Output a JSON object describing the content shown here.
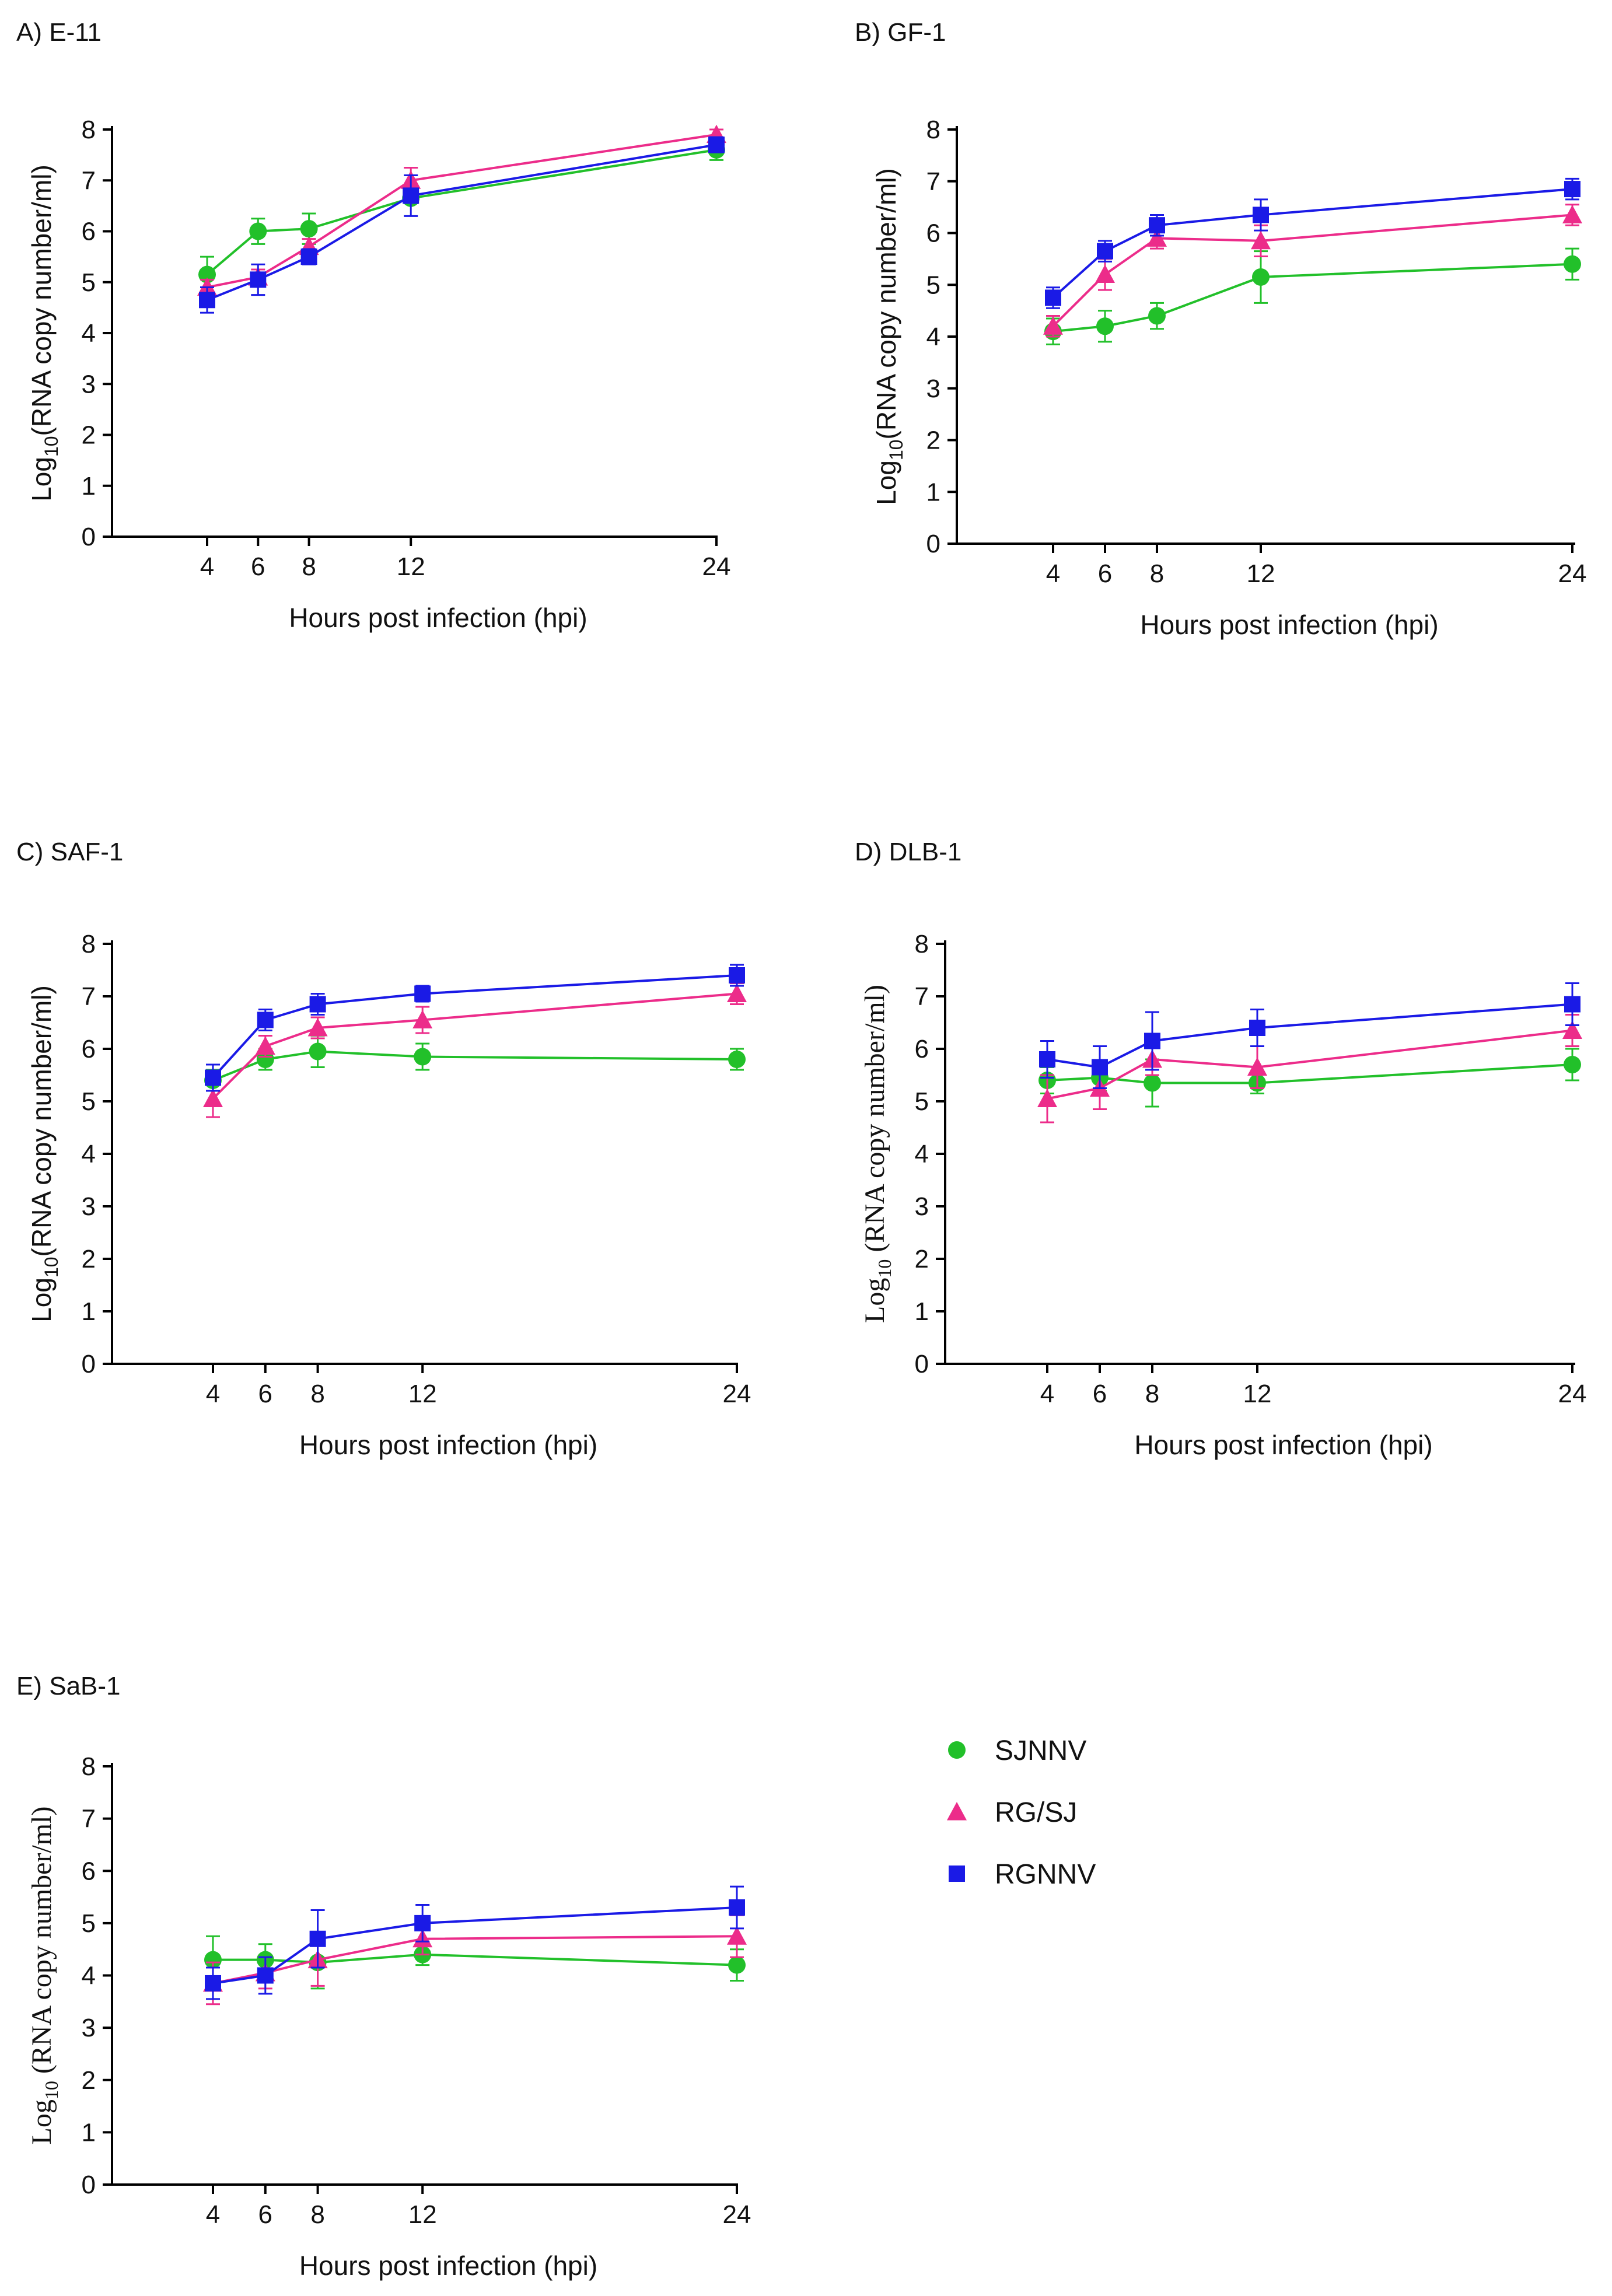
{
  "colors": {
    "SJNNV": "#22c02a",
    "RG/SJ": "#ec2c8a",
    "RGNNV": "#1a1ae6",
    "axis": "#000000"
  },
  "legend": [
    {
      "name": "SJNNV",
      "marker": "circle"
    },
    {
      "name": "RG/SJ",
      "marker": "triangle"
    },
    {
      "name": "RGNNV",
      "marker": "square"
    }
  ],
  "chart_data": [
    {
      "type": "line",
      "title": "A) E-11",
      "xlabel": "Hours post infection (hpi)",
      "ylabel_prefix": "Log",
      "ylabel_sub": "10",
      "ylabel_rest": "(RNA copy number/ml)",
      "x": [
        4,
        6,
        8,
        12,
        24
      ],
      "xticks": [
        "4",
        "6",
        "8",
        "12",
        "24"
      ],
      "yticks": [
        "0",
        "1",
        "2",
        "3",
        "4",
        "5",
        "6",
        "7",
        "8"
      ],
      "ylim": [
        0,
        8
      ],
      "series": [
        {
          "name": "SJNNV",
          "values": [
            5.15,
            6.0,
            6.05,
            6.65,
            7.6
          ],
          "errors": [
            0.35,
            0.25,
            0.3,
            0.1,
            0.2
          ]
        },
        {
          "name": "RG/SJ",
          "values": [
            4.9,
            5.1,
            5.7,
            7.0,
            7.9
          ],
          "errors": [
            0.15,
            0.15,
            0.15,
            0.25,
            0.1
          ]
        },
        {
          "name": "RGNNV",
          "values": [
            4.65,
            5.05,
            5.5,
            6.7,
            7.7
          ],
          "errors": [
            0.25,
            0.3,
            0.15,
            0.4,
            0.15
          ]
        }
      ]
    },
    {
      "type": "line",
      "title": "B) GF-1",
      "xlabel": "Hours post infection (hpi)",
      "ylabel_prefix": "Log",
      "ylabel_sub": "10",
      "ylabel_rest": "(RNA copy number/ml)",
      "x": [
        4,
        6,
        8,
        12,
        24
      ],
      "xticks": [
        "4",
        "6",
        "8",
        "12",
        "24"
      ],
      "yticks": [
        "0",
        "1",
        "2",
        "3",
        "4",
        "5",
        "6",
        "7",
        "8"
      ],
      "ylim": [
        0,
        8
      ],
      "series": [
        {
          "name": "SJNNV",
          "values": [
            4.1,
            4.2,
            4.4,
            5.15,
            5.4
          ],
          "errors": [
            0.25,
            0.3,
            0.25,
            0.5,
            0.3
          ]
        },
        {
          "name": "RG/SJ",
          "values": [
            4.2,
            5.2,
            5.9,
            5.85,
            6.35
          ],
          "errors": [
            0.2,
            0.3,
            0.2,
            0.3,
            0.2
          ]
        },
        {
          "name": "RGNNV",
          "values": [
            4.75,
            5.65,
            6.15,
            6.35,
            6.85
          ],
          "errors": [
            0.2,
            0.2,
            0.2,
            0.3,
            0.2
          ]
        }
      ]
    },
    {
      "type": "line",
      "title": "C) SAF-1",
      "xlabel": "Hours post infection (hpi)",
      "ylabel_prefix": "Log",
      "ylabel_sub": "10",
      "ylabel_rest": "(RNA copy number/ml)",
      "x": [
        4,
        6,
        8,
        12,
        24
      ],
      "xticks": [
        "4",
        "6",
        "8",
        "12",
        "24"
      ],
      "yticks": [
        "0",
        "1",
        "2",
        "3",
        "4",
        "5",
        "6",
        "7",
        "8"
      ],
      "ylim": [
        0,
        8
      ],
      "series": [
        {
          "name": "SJNNV",
          "values": [
            5.4,
            5.8,
            5.95,
            5.85,
            5.8
          ],
          "errors": [
            0.2,
            0.2,
            0.3,
            0.25,
            0.2
          ]
        },
        {
          "name": "RG/SJ",
          "values": [
            5.05,
            6.05,
            6.4,
            6.55,
            7.05
          ],
          "errors": [
            0.35,
            0.2,
            0.2,
            0.25,
            0.2
          ]
        },
        {
          "name": "RGNNV",
          "values": [
            5.45,
            6.55,
            6.85,
            7.05,
            7.4
          ],
          "errors": [
            0.25,
            0.2,
            0.2,
            0.15,
            0.2
          ]
        }
      ]
    },
    {
      "type": "line",
      "title": "D) DLB-1",
      "xlabel": "Hours post infection (hpi)",
      "ylabel_prefix": "Log",
      "ylabel_sub": "10",
      "ylabel_rest": " (RNA copy number/ml)",
      "ylabel_style": "serif",
      "x": [
        4,
        6,
        8,
        12,
        24
      ],
      "xticks": [
        "4",
        "6",
        "8",
        "12",
        "24"
      ],
      "yticks": [
        "0",
        "1",
        "2",
        "3",
        "4",
        "5",
        "6",
        "7",
        "8"
      ],
      "ylim": [
        0,
        8
      ],
      "series": [
        {
          "name": "SJNNV",
          "values": [
            5.4,
            5.45,
            5.35,
            5.35,
            5.7
          ],
          "errors": [
            0.25,
            0.25,
            0.45,
            0.2,
            0.3
          ]
        },
        {
          "name": "RG/SJ",
          "values": [
            5.05,
            5.25,
            5.8,
            5.65,
            6.35
          ],
          "errors": [
            0.45,
            0.4,
            0.3,
            0.4,
            0.3
          ]
        },
        {
          "name": "RGNNV",
          "values": [
            5.8,
            5.65,
            6.15,
            6.4,
            6.85
          ],
          "errors": [
            0.35,
            0.4,
            0.55,
            0.35,
            0.4
          ]
        }
      ]
    },
    {
      "type": "line",
      "title": "E) SaB-1",
      "xlabel": "Hours post infection (hpi)",
      "ylabel_prefix": "Log",
      "ylabel_sub": "10",
      "ylabel_rest": " (RNA copy number/ml)",
      "ylabel_style": "serif",
      "x": [
        4,
        6,
        8,
        12,
        24
      ],
      "xticks": [
        "4",
        "6",
        "8",
        "12",
        "24"
      ],
      "yticks": [
        "0",
        "1",
        "2",
        "3",
        "4",
        "5",
        "6",
        "7",
        "8"
      ],
      "ylim": [
        0,
        8
      ],
      "series": [
        {
          "name": "SJNNV",
          "values": [
            4.3,
            4.3,
            4.25,
            4.4,
            4.2
          ],
          "errors": [
            0.45,
            0.3,
            0.5,
            0.2,
            0.3
          ]
        },
        {
          "name": "RG/SJ",
          "values": [
            3.85,
            4.05,
            4.3,
            4.7,
            4.75
          ],
          "errors": [
            0.4,
            0.3,
            0.5,
            0.3,
            0.4
          ]
        },
        {
          "name": "RGNNV",
          "values": [
            3.85,
            4.0,
            4.7,
            5.0,
            5.3
          ],
          "errors": [
            0.3,
            0.35,
            0.55,
            0.35,
            0.4
          ]
        }
      ]
    }
  ]
}
